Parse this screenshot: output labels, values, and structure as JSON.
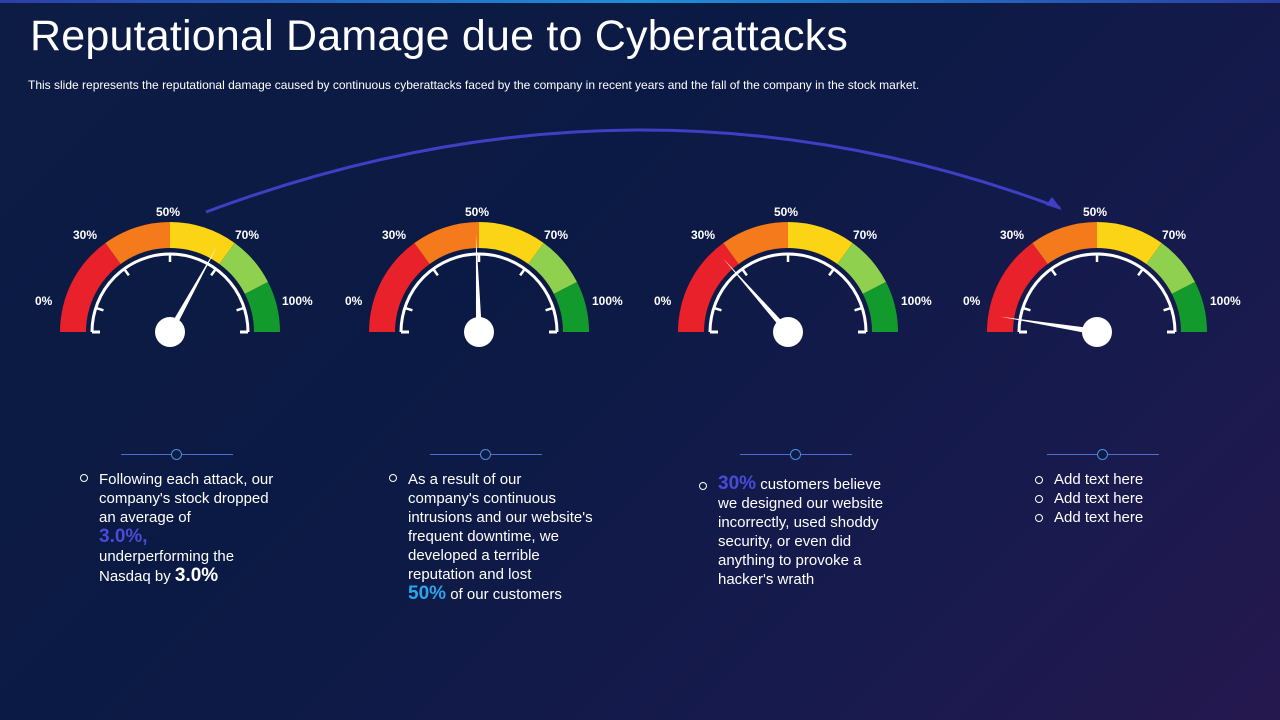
{
  "slide": {
    "title": "Reputational Damage due to Cyberattacks",
    "subtitle": "This slide represents the reputational damage caused by continuous cyberattacks faced by the company in recent years and the fall of the company in the stock market."
  },
  "scale_labels": {
    "l0": "0%",
    "l30": "30%",
    "l50": "50%",
    "l70": "70%",
    "l100": "100%"
  },
  "colors": {
    "red": "#e8212a",
    "orange": "#f47a1b",
    "yellow": "#fbd415",
    "lightgreen": "#8fd14f",
    "green": "#129a2c",
    "arrow": "#3f3fc4"
  },
  "gauges": [
    {
      "needle_value": 66
    },
    {
      "needle_value": 49
    },
    {
      "needle_value": 27
    },
    {
      "needle_value": 5
    }
  ],
  "panels": {
    "p1": {
      "text_a": "Following each attack, our company's stock dropped an average of",
      "highlight_a": "3.0%,",
      "text_b": "underperforming the Nasdaq by",
      "highlight_b": "3.0%"
    },
    "p2": {
      "text_a": "As a result of our company's continuous intrusions and our website's frequent downtime, we developed a terrible reputation and lost",
      "highlight_a": "50%",
      "text_b": "of our customers"
    },
    "p3": {
      "highlight_a": "30%",
      "text_a": "customers believe we designed our website incorrectly, used shoddy security, or even did anything to provoke a hacker's wrath"
    },
    "p4": {
      "items": [
        "Add text here",
        "Add text here",
        "Add text here"
      ]
    }
  }
}
